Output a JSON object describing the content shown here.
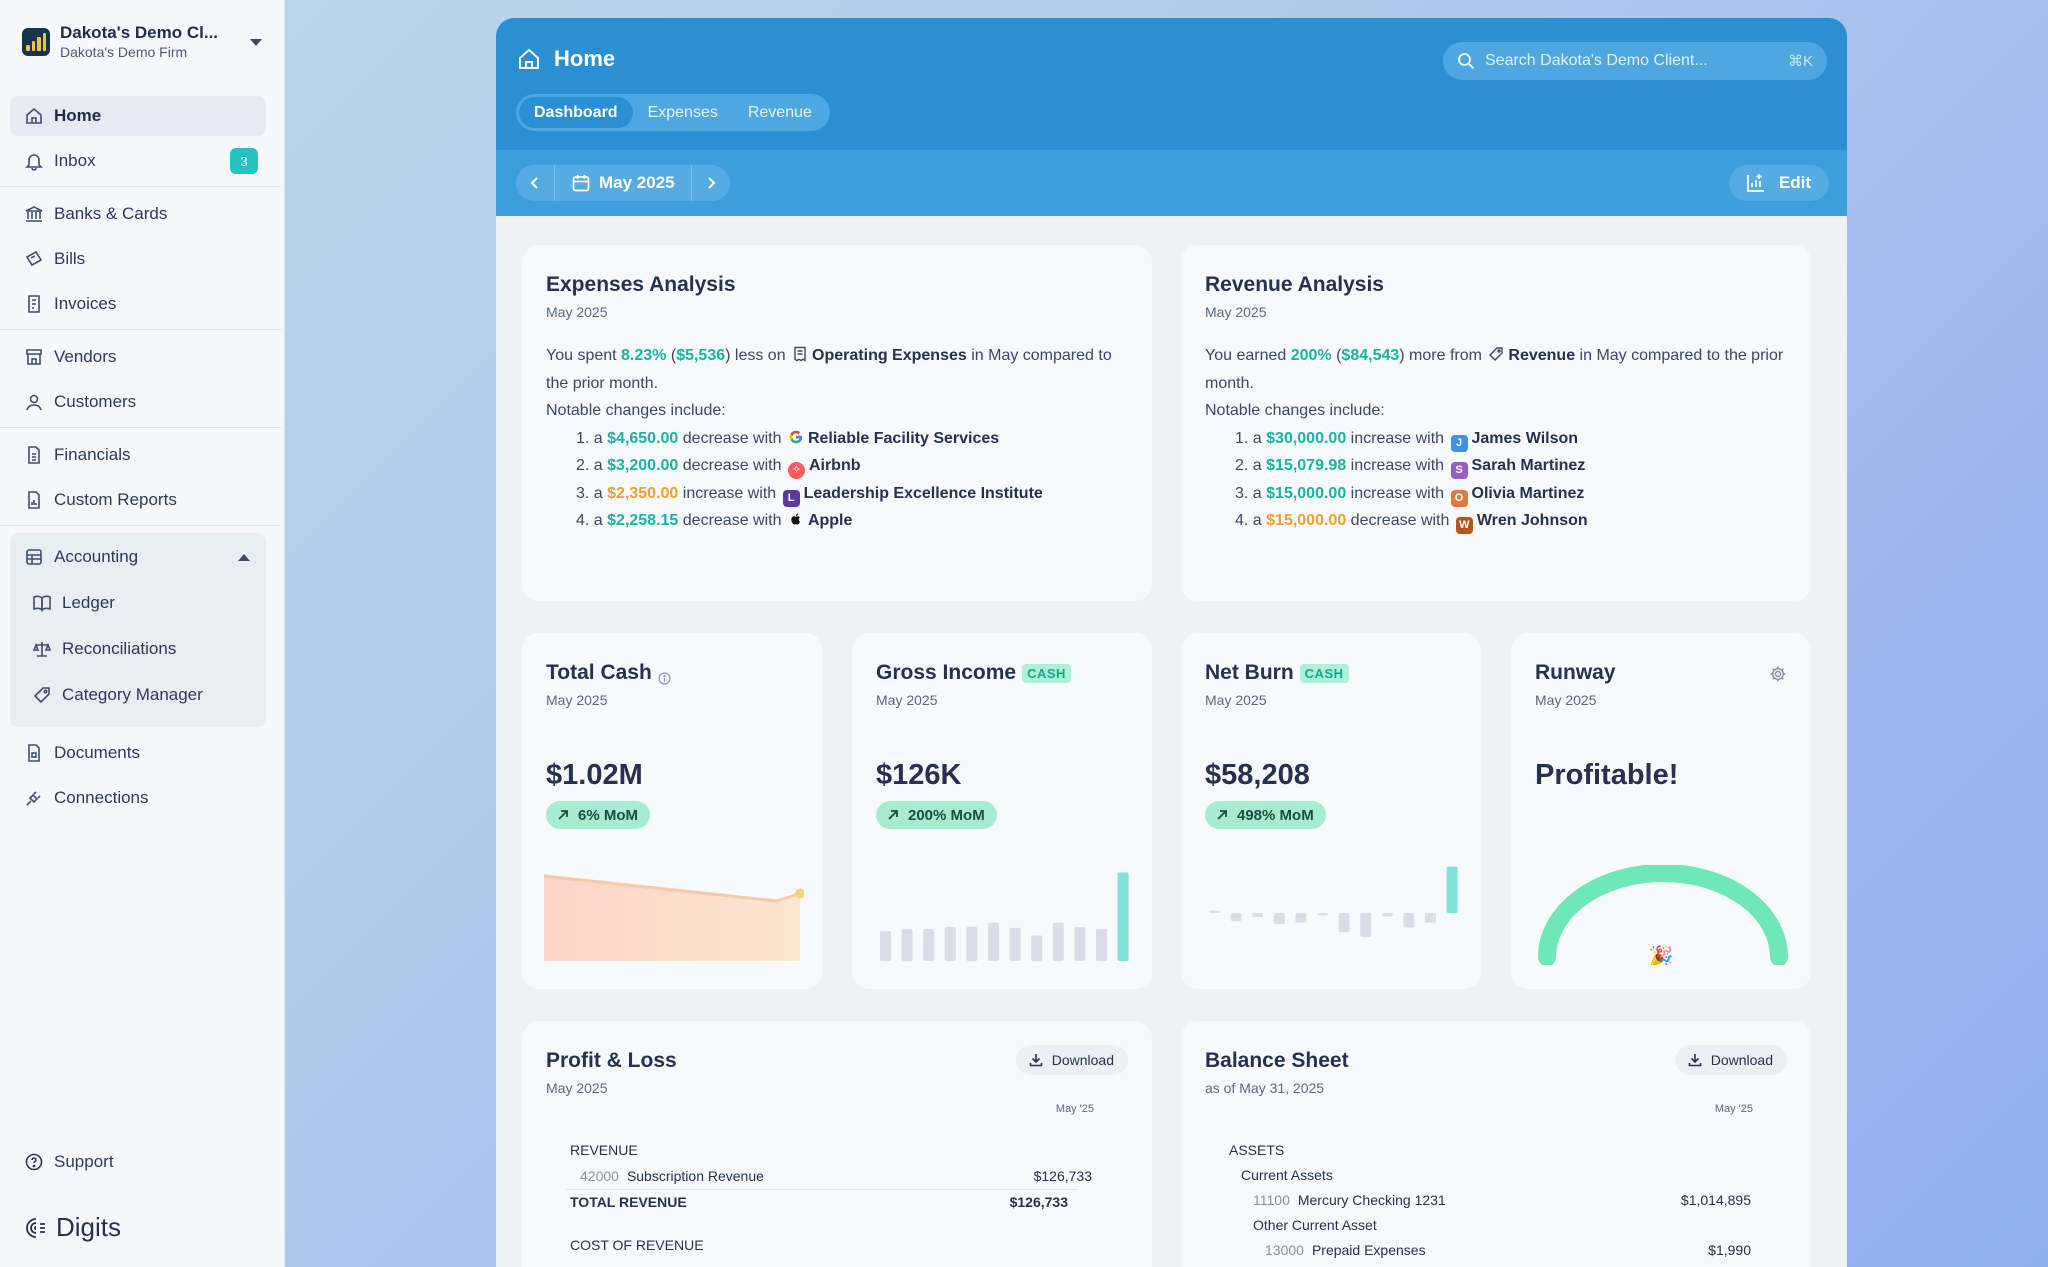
{
  "client": {
    "name": "Dakota's Demo Cl...",
    "firm": "Dakota's Demo Firm"
  },
  "nav": {
    "home": "Home",
    "inbox": "Inbox",
    "inbox_badge": "3",
    "banks": "Banks & Cards",
    "bills": "Bills",
    "invoices": "Invoices",
    "vendors": "Vendors",
    "customers": "Customers",
    "financials": "Financials",
    "custom_reports": "Custom Reports",
    "accounting": "Accounting",
    "ledger": "Ledger",
    "reconciliations": "Reconciliations",
    "category_manager": "Category Manager",
    "documents": "Documents",
    "connections": "Connections",
    "support": "Support",
    "brand": "Digits"
  },
  "header": {
    "title": "Home",
    "tabs": [
      "Dashboard",
      "Expenses",
      "Revenue"
    ],
    "search_placeholder": "Search Dakota's Demo Client...",
    "search_shortcut": "⌘K",
    "period": "May 2025",
    "edit_label": "Edit"
  },
  "expenses_analysis": {
    "title": "Expenses Analysis",
    "period": "May 2025",
    "intro_a": "You spent ",
    "pct": "8.23%",
    "amount": "$5,536",
    "intro_b": " less on ",
    "category": "Operating Expenses",
    "intro_c": " in May compared to the prior month.",
    "notable": "Notable changes include:",
    "items": [
      {
        "num": "1.",
        "amount": "$4,650.00",
        "kind": "decrease",
        "color": "teal",
        "vendor": "Reliable Facility Services",
        "logo": "G",
        "logo_color": "#ffffff"
      },
      {
        "num": "2.",
        "amount": "$3,200.00",
        "kind": "decrease",
        "color": "teal",
        "vendor": "Airbnb",
        "logo": "a",
        "logo_color": "#ff5a5f"
      },
      {
        "num": "3.",
        "amount": "$2,350.00",
        "kind": "increase",
        "color": "orange",
        "vendor": "Leadership Excellence Institute",
        "logo": "L",
        "logo_color": "#5b3aa0"
      },
      {
        "num": "4.",
        "amount": "$2,258.15",
        "kind": "decrease",
        "color": "teal",
        "vendor": "Apple",
        "logo": "",
        "logo_color": "#ffffff"
      }
    ]
  },
  "revenue_analysis": {
    "title": "Revenue Analysis",
    "period": "May 2025",
    "intro_a": "You earned ",
    "pct": "200%",
    "amount": "$84,543",
    "intro_b": " more from ",
    "category": "Revenue",
    "intro_c": " in May compared to the prior month.",
    "notable": "Notable changes include:",
    "items": [
      {
        "num": "1.",
        "amount": "$30,000.00",
        "kind": "increase",
        "color": "teal",
        "vendor": "James Wilson",
        "logo": "J",
        "logo_color": "#3d8ff0"
      },
      {
        "num": "2.",
        "amount": "$15,079.98",
        "kind": "increase",
        "color": "teal",
        "vendor": "Sarah Martinez",
        "logo": "S",
        "logo_color": "#9a5cc6"
      },
      {
        "num": "3.",
        "amount": "$15,000.00",
        "kind": "increase",
        "color": "teal",
        "vendor": "Olivia Martinez",
        "logo": "O",
        "logo_color": "#e07a3c"
      },
      {
        "num": "4.",
        "amount": "$15,000.00",
        "kind": "decrease",
        "color": "orange",
        "vendor": "Wren Johnson",
        "logo": "W",
        "logo_color": "#b5551c"
      }
    ]
  },
  "kpis": {
    "total_cash": {
      "title": "Total Cash",
      "period": "May 2025",
      "value": "$1.02M",
      "mom": "6% MoM"
    },
    "gross_income": {
      "title": "Gross Income",
      "tag": "CASH",
      "period": "May 2025",
      "value": "$126K",
      "mom": "200% MoM"
    },
    "net_burn": {
      "title": "Net Burn",
      "tag": "CASH",
      "period": "May 2025",
      "value": "$58,208",
      "mom": "498% MoM"
    },
    "runway": {
      "title": "Runway",
      "period": "May 2025",
      "value": "Profitable!",
      "emoji": "🎉"
    }
  },
  "chart_data": [
    {
      "type": "area",
      "series": [
        {
          "values": [
            1.07,
            1.065,
            1.06,
            1.055,
            1.05,
            1.045,
            1.04,
            1.035,
            1.03,
            1.025,
            1.02,
            1.035
          ]
        }
      ]
    },
    {
      "type": "bar",
      "series": [
        {
          "values": [
            28,
            30,
            30,
            32,
            32,
            36,
            31,
            24,
            36,
            32,
            30,
            83
          ]
        }
      ]
    },
    {
      "type": "bar",
      "series": [
        {
          "values": [
            3,
            -10,
            -5,
            -14,
            -12,
            -3,
            -24,
            -30,
            -4,
            -18,
            -12,
            58
          ]
        }
      ]
    }
  ],
  "profit_loss": {
    "title": "Profit & Loss",
    "period": "May 2025",
    "download": "Download",
    "col": "May '25",
    "revenue": "REVENUE",
    "sub_acct": "42000",
    "sub_name": "Subscription Revenue",
    "sub_amt": "$126,733",
    "total_label": "TOTAL REVENUE",
    "total_amt": "$126,733",
    "cor": "COST OF REVENUE"
  },
  "balance_sheet": {
    "title": "Balance Sheet",
    "period": "as of May 31, 2025",
    "download": "Download",
    "col": "May '25",
    "assets": "ASSETS",
    "current_assets": "Current Assets",
    "a1_acct": "11100",
    "a1_name": "Mercury Checking 1231",
    "a1_amt": "$1,014,895",
    "other_current": "Other Current Asset",
    "a2_acct": "13000",
    "a2_name": "Prepaid Expenses",
    "a2_amt": "$1,990"
  },
  "colors": {
    "header_blue": "#2a8fd3",
    "teal": "#17b3a3",
    "orange": "#f0a02c",
    "runway_green": "#6fe8b8"
  }
}
